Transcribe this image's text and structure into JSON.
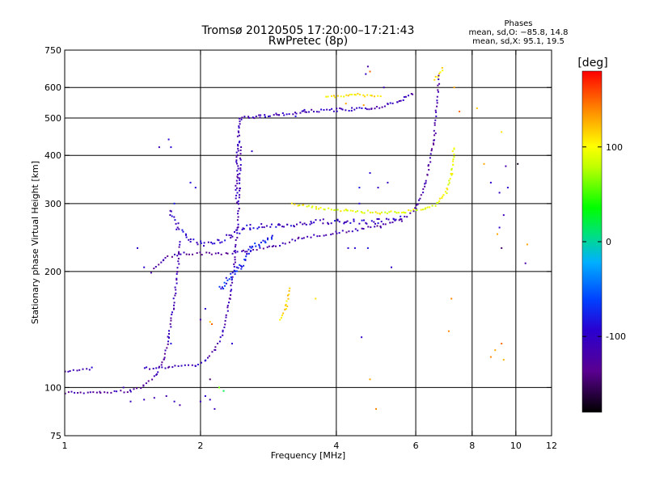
{
  "chart_data": {
    "type": "scatter",
    "title": "Tromsø 20120505 17:20:00–17:21:43",
    "subtitle": "RwPretec (8p)",
    "xlabel": "Frequency [MHz]",
    "ylabel": "Stationary phase Virtual Height [km]",
    "x_scale": "log",
    "y_scale": "log",
    "xlim": [
      1,
      12
    ],
    "ylim": [
      75,
      750
    ],
    "x_ticks": [
      1,
      2,
      4,
      6,
      8,
      10,
      12
    ],
    "y_ticks": [
      75,
      100,
      200,
      300,
      400,
      500,
      600,
      750
    ],
    "x_grid": [
      2,
      4,
      6,
      8,
      10
    ],
    "y_grid": [
      100,
      200,
      300,
      400,
      500,
      600
    ],
    "grid": true,
    "phases_box": {
      "title": "Phases",
      "line1": "mean, sd,O: −85.8, 14.8",
      "line2": "mean, sd,X:  95.1, 19.5"
    },
    "colorbar": {
      "label": "[deg]",
      "ticks": [
        100,
        0,
        -100
      ],
      "range": [
        -180,
        180
      ]
    },
    "traces": [
      {
        "segments": [
          [
            1.0,
            97,
            1.2,
            97
          ],
          [
            1.2,
            97,
            1.4,
            98
          ],
          [
            1.4,
            98,
            1.5,
            101
          ],
          [
            1.5,
            101,
            1.6,
            108
          ],
          [
            1.6,
            108,
            1.66,
            118
          ],
          [
            1.66,
            118,
            1.7,
            135
          ],
          [
            1.7,
            135,
            1.74,
            160
          ],
          [
            1.74,
            160,
            1.78,
            200
          ],
          [
            1.78,
            200,
            1.8,
            240
          ]
        ],
        "n": 4,
        "phase": -118,
        "noise": 0.008
      },
      {
        "segments": [
          [
            1.0,
            110,
            1.15,
            112
          ],
          [
            1.5,
            112,
            1.7,
            113
          ],
          [
            1.7,
            113,
            1.95,
            114
          ],
          [
            1.95,
            114,
            2.05,
            117
          ],
          [
            2.05,
            117,
            2.15,
            125
          ],
          [
            2.15,
            125,
            2.25,
            140
          ],
          [
            2.25,
            140,
            2.32,
            170
          ],
          [
            2.32,
            170,
            2.38,
            210
          ],
          [
            2.38,
            210,
            2.42,
            260
          ],
          [
            2.42,
            260,
            2.44,
            330
          ],
          [
            2.44,
            330,
            2.46,
            420
          ]
        ],
        "n": 4,
        "phase": -112,
        "noise": 0.008
      },
      {
        "segments": [
          [
            1.55,
            200,
            1.65,
            215
          ],
          [
            1.65,
            215,
            1.8,
            223
          ],
          [
            1.8,
            223,
            2.2,
            222
          ],
          [
            2.2,
            222,
            2.5,
            225
          ],
          [
            2.5,
            225,
            2.9,
            232
          ],
          [
            2.9,
            232,
            3.3,
            244
          ],
          [
            3.3,
            244,
            4.0,
            252
          ],
          [
            4.0,
            252,
            5.0,
            262
          ],
          [
            5.0,
            262,
            5.6,
            272
          ],
          [
            5.6,
            272,
            6.0,
            290
          ],
          [
            6.0,
            290,
            6.3,
            340
          ],
          [
            6.3,
            340,
            6.6,
            440
          ],
          [
            6.6,
            440,
            6.75,
            640
          ]
        ],
        "n": 4,
        "phase": -122,
        "noise": 0.01
      },
      {
        "segments": [
          [
            1.7,
            290,
            1.78,
            260
          ],
          [
            1.78,
            260,
            1.9,
            240
          ],
          [
            1.9,
            240,
            2.05,
            235
          ],
          [
            2.05,
            235,
            2.2,
            240
          ],
          [
            2.2,
            240,
            2.35,
            250
          ],
          [
            2.35,
            250,
            2.6,
            262
          ],
          [
            2.6,
            262,
            3.0,
            262
          ],
          [
            3.0,
            262,
            3.5,
            268
          ],
          [
            3.5,
            268,
            4.2,
            270
          ],
          [
            4.2,
            270,
            5.0,
            270
          ],
          [
            5.0,
            270,
            5.6,
            274
          ]
        ],
        "n": 3,
        "phase": -100,
        "noise": 0.02
      },
      {
        "segments": [
          [
            2.4,
            300,
            2.42,
            420
          ],
          [
            2.42,
            420,
            2.45,
            500
          ],
          [
            2.45,
            500,
            2.7,
            505
          ],
          [
            2.7,
            505,
            3.0,
            510
          ],
          [
            3.0,
            510,
            3.4,
            520
          ],
          [
            3.4,
            520,
            4.0,
            525
          ],
          [
            4.0,
            525,
            4.8,
            528
          ],
          [
            4.8,
            528,
            5.5,
            550
          ],
          [
            5.5,
            550,
            5.9,
            580
          ]
        ],
        "n": 3,
        "phase": -108,
        "noise": 0.012
      },
      {
        "segments": [
          [
            3.2,
            300,
            3.6,
            292
          ],
          [
            3.6,
            292,
            4.2,
            288
          ],
          [
            4.2,
            288,
            5.0,
            284
          ],
          [
            5.0,
            284,
            5.7,
            286
          ],
          [
            5.7,
            286,
            6.3,
            290
          ],
          [
            6.3,
            290,
            6.7,
            300
          ],
          [
            6.7,
            300,
            7.0,
            320
          ],
          [
            7.0,
            320,
            7.2,
            360
          ],
          [
            7.2,
            360,
            7.3,
            420
          ]
        ],
        "n": 3,
        "phase": 95,
        "noise": 0.01
      },
      {
        "segments": [
          [
            3.8,
            565,
            4.4,
            575
          ],
          [
            4.4,
            575,
            5.0,
            570
          ],
          [
            6.6,
            630,
            6.9,
            670
          ]
        ],
        "n": 3,
        "phase": 110,
        "noise": 0.01
      },
      {
        "segments": [
          [
            3.0,
            150,
            3.1,
            162
          ],
          [
            3.1,
            162,
            3.15,
            180
          ]
        ],
        "n": 3,
        "phase": 112,
        "noise": 0.01
      },
      {
        "segments": [
          [
            2.2,
            180,
            2.45,
            205
          ],
          [
            2.45,
            205,
            2.6,
            230
          ],
          [
            2.6,
            230,
            2.9,
            245
          ]
        ],
        "n": 2,
        "phase": -75,
        "noise": 0.02
      }
    ],
    "scatter_points": [
      [
        1.7,
        440,
        -90
      ],
      [
        1.72,
        420,
        -90
      ],
      [
        1.62,
        420,
        -110
      ],
      [
        1.9,
        340,
        -85
      ],
      [
        1.95,
        330,
        -95
      ],
      [
        1.75,
        300,
        -80
      ],
      [
        1.45,
        230,
        -95
      ],
      [
        1.5,
        205,
        -100
      ],
      [
        1.35,
        100,
        -110
      ],
      [
        1.4,
        92,
        -105
      ],
      [
        1.5,
        93,
        -110
      ],
      [
        1.58,
        94,
        -115
      ],
      [
        1.68,
        95,
        -120
      ],
      [
        1.75,
        92,
        -100
      ],
      [
        1.8,
        90,
        -120
      ],
      [
        2.0,
        92,
        -110
      ],
      [
        2.05,
        95,
        -95
      ],
      [
        2.1,
        93,
        -105
      ],
      [
        1.7,
        135,
        -90
      ],
      [
        1.72,
        130,
        -85
      ],
      [
        2.0,
        150,
        -120
      ],
      [
        2.05,
        160,
        -95
      ],
      [
        2.1,
        105,
        -150
      ],
      [
        2.15,
        88,
        -110
      ],
      [
        2.1,
        148,
        120
      ],
      [
        2.12,
        146,
        150
      ],
      [
        2.2,
        100,
        60
      ],
      [
        2.25,
        98,
        20
      ],
      [
        2.35,
        130,
        -95
      ],
      [
        3.6,
        170,
        110
      ],
      [
        2.6,
        410,
        -100
      ],
      [
        3.25,
        505,
        -85
      ],
      [
        3.4,
        525,
        -90
      ],
      [
        4.2,
        545,
        130
      ],
      [
        4.6,
        540,
        135
      ],
      [
        4.95,
        330,
        -100
      ],
      [
        5.2,
        340,
        -100
      ],
      [
        4.75,
        360,
        -90
      ],
      [
        4.5,
        330,
        -80
      ],
      [
        4.7,
        680,
        -120
      ],
      [
        4.65,
        650,
        -100
      ],
      [
        5.1,
        600,
        -110
      ],
      [
        4.4,
        230,
        -90
      ],
      [
        4.7,
        230,
        -85
      ],
      [
        4.75,
        660,
        150
      ],
      [
        7.5,
        520,
        150
      ],
      [
        7.3,
        600,
        130
      ],
      [
        7.2,
        170,
        140
      ],
      [
        7.1,
        140,
        140
      ],
      [
        5.3,
        205,
        -100
      ],
      [
        4.9,
        88,
        140
      ],
      [
        4.75,
        105,
        130
      ],
      [
        4.55,
        135,
        -100
      ],
      [
        4.25,
        230,
        -95
      ],
      [
        4.5,
        300,
        -90
      ],
      [
        8.5,
        380,
        130
      ],
      [
        8.8,
        340,
        -95
      ],
      [
        9.2,
        320,
        -100
      ],
      [
        9.3,
        460,
        110
      ],
      [
        9.4,
        280,
        -110
      ],
      [
        9.3,
        230,
        -150
      ],
      [
        9.5,
        375,
        -120
      ],
      [
        9.6,
        330,
        -95
      ],
      [
        9.2,
        260,
        -95
      ],
      [
        9.1,
        250,
        130
      ],
      [
        10.1,
        380,
        -170
      ],
      [
        10.5,
        210,
        -120
      ],
      [
        10.6,
        235,
        130
      ],
      [
        9.3,
        130,
        150
      ],
      [
        8.8,
        120,
        140
      ],
      [
        9.0,
        125,
        130
      ],
      [
        9.4,
        118,
        125
      ],
      [
        8.2,
        530,
        120
      ]
    ]
  }
}
